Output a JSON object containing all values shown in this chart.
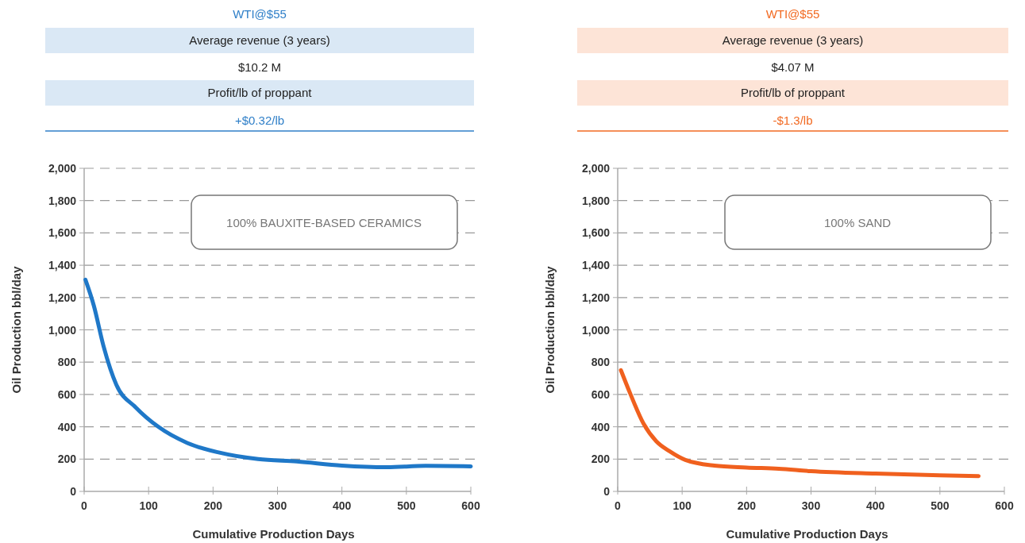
{
  "chart_data": [
    {
      "type": "other",
      "title": "WTI@$55",
      "color": "#2f7fc8",
      "annotations": [
        "Average revenue (3 years)",
        "$10.2 M",
        "Profit/lb of proppant",
        "+$0.32/lb"
      ]
    },
    {
      "type": "line",
      "xlabel": "Cumulative Production Days",
      "ylabel": "Oil Production bbl/day",
      "annotations": [
        "100% BAUXITE-BASED CERAMICS"
      ],
      "xlim": [
        0,
        600
      ],
      "xticks": [
        0,
        100,
        200,
        300,
        400,
        500,
        600
      ],
      "ylim": [
        0,
        2000
      ],
      "yticks": [
        0,
        200,
        400,
        600,
        800,
        {
          "value": 1000,
          "label": "1,000"
        },
        {
          "value": 1200,
          "label": "1,200"
        },
        {
          "value": 1400,
          "label": "1,400"
        },
        {
          "value": 1600,
          "label": "1,600"
        },
        {
          "value": 1800,
          "label": "1,800"
        },
        {
          "value": 2000,
          "label": "2,000"
        }
      ],
      "grid": "y",
      "series": [
        {
          "color": "#1f78c8",
          "x": [
            2,
            15,
            30,
            50,
            80,
            115,
            160,
            210,
            270,
            330,
            400,
            470,
            530,
            600
          ],
          "values": [
            1310,
            1150,
            900,
            660,
            520,
            400,
            300,
            240,
            200,
            185,
            160,
            150,
            158,
            155
          ]
        }
      ]
    },
    {
      "type": "other",
      "title": "WTI@$55",
      "color": "#f26a22",
      "annotations": [
        "Average revenue (3 years)",
        "$4.07 M",
        "Profit/lb of proppant",
        "-$1.3/lb"
      ]
    },
    {
      "type": "line",
      "xlabel": "Cumulative Production Days",
      "ylabel": "Oil Production bbl/day",
      "annotations": [
        "100% SAND"
      ],
      "xlim": [
        0,
        600
      ],
      "xticks": [
        0,
        100,
        200,
        300,
        400,
        500,
        600
      ],
      "ylim": [
        0,
        2000
      ],
      "yticks": [
        0,
        200,
        400,
        600,
        800,
        {
          "value": 1000,
          "label": "1,000"
        },
        {
          "value": 1200,
          "label": "1,200"
        },
        {
          "value": 1400,
          "label": "1,400"
        },
        {
          "value": 1600,
          "label": "1,600"
        },
        {
          "value": 1800,
          "label": "1,800"
        },
        {
          "value": 2000,
          "label": "2,000"
        }
      ],
      "grid": "y",
      "series": [
        {
          "color": "#f0601e",
          "x": [
            5,
            20,
            40,
            60,
            80,
            105,
            150,
            200,
            250,
            300,
            400,
            500,
            560
          ],
          "values": [
            750,
            600,
            420,
            310,
            250,
            195,
            160,
            148,
            140,
            125,
            110,
            100,
            95
          ]
        }
      ]
    }
  ]
}
